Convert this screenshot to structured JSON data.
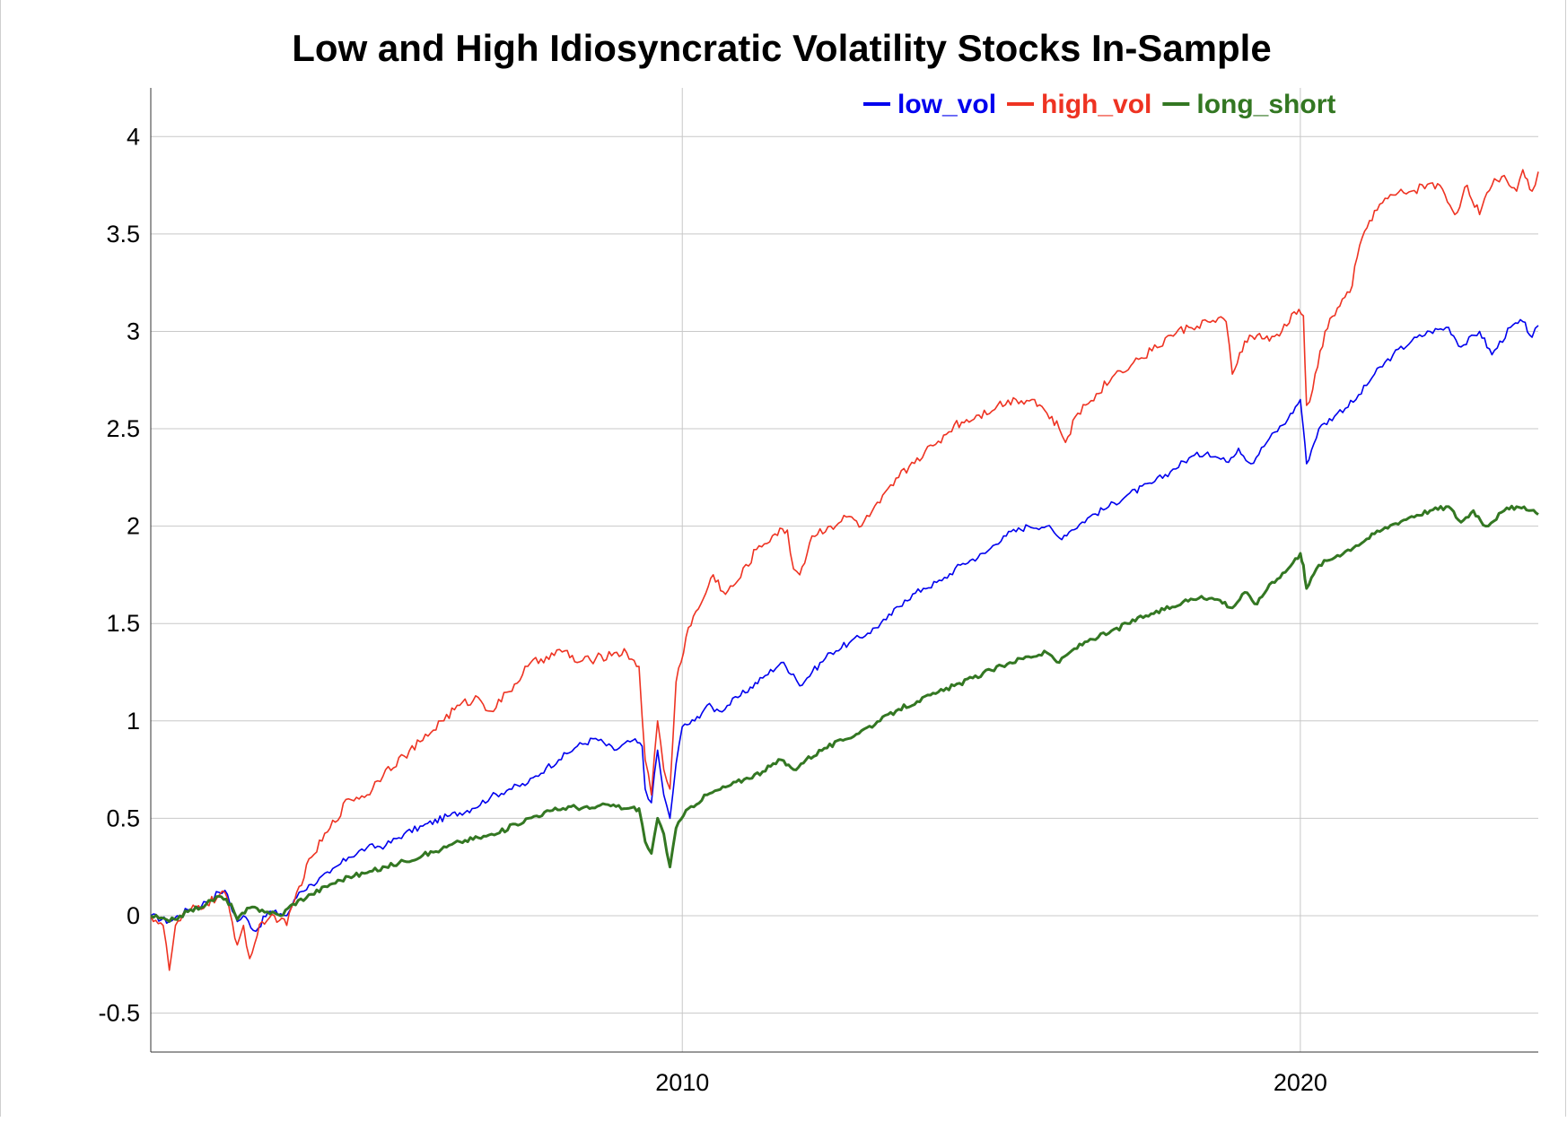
{
  "chart_data": {
    "type": "line",
    "title": "Low and High Idiosyncratic Volatility Stocks In-Sample",
    "xlabel": "",
    "ylabel": "",
    "xlim": [
      2001.4,
      2023.85
    ],
    "ylim": [
      -0.7,
      4.25
    ],
    "yticks": [
      -0.5,
      0,
      0.5,
      1,
      1.5,
      2,
      2.5,
      3,
      3.5,
      4
    ],
    "ytick_labels": [
      "-0.5",
      "0",
      "0.5",
      "1",
      "1.5",
      "2",
      "2.5",
      "3",
      "3.5",
      "4"
    ],
    "xticks": [
      2010,
      2020
    ],
    "xtick_labels": [
      "2010",
      "2020"
    ],
    "grid": true,
    "legend_position": "top-right",
    "series": [
      {
        "name": "low_vol",
        "color": "#0000ee",
        "points": [
          [
            2001.4,
            0.0
          ],
          [
            2001.7,
            -0.03
          ],
          [
            2002.0,
            0.03
          ],
          [
            2002.3,
            0.07
          ],
          [
            2002.5,
            0.12
          ],
          [
            2002.6,
            0.13
          ],
          [
            2002.8,
            -0.03
          ],
          [
            2002.9,
            0.0
          ],
          [
            2003.1,
            -0.08
          ],
          [
            2003.3,
            0.02
          ],
          [
            2003.5,
            0.01
          ],
          [
            2003.6,
            0.0
          ],
          [
            2003.8,
            0.12
          ],
          [
            2004.0,
            0.16
          ],
          [
            2004.3,
            0.22
          ],
          [
            2004.6,
            0.3
          ],
          [
            2004.9,
            0.35
          ],
          [
            2005.2,
            0.36
          ],
          [
            2005.5,
            0.42
          ],
          [
            2005.8,
            0.46
          ],
          [
            2006.2,
            0.51
          ],
          [
            2006.6,
            0.55
          ],
          [
            2006.9,
            0.61
          ],
          [
            2007.2,
            0.65
          ],
          [
            2007.5,
            0.68
          ],
          [
            2007.8,
            0.76
          ],
          [
            2008.0,
            0.8
          ],
          [
            2008.3,
            0.87
          ],
          [
            2008.6,
            0.91
          ],
          [
            2008.9,
            0.85
          ],
          [
            2009.2,
            0.9
          ],
          [
            2009.35,
            0.87
          ],
          [
            2009.4,
            0.65
          ],
          [
            2009.5,
            0.58
          ],
          [
            2009.6,
            0.85
          ],
          [
            2009.7,
            0.62
          ],
          [
            2009.8,
            0.5
          ],
          [
            2009.9,
            0.78
          ],
          [
            2010.0,
            0.97
          ],
          [
            2010.2,
            1.0
          ],
          [
            2010.4,
            1.08
          ],
          [
            2010.6,
            1.05
          ],
          [
            2010.9,
            1.12
          ],
          [
            2011.3,
            1.22
          ],
          [
            2011.6,
            1.3
          ],
          [
            2011.8,
            1.24
          ],
          [
            2011.9,
            1.18
          ],
          [
            2012.1,
            1.25
          ],
          [
            2012.4,
            1.35
          ],
          [
            2012.7,
            1.4
          ],
          [
            2013.0,
            1.45
          ],
          [
            2013.3,
            1.52
          ],
          [
            2013.6,
            1.62
          ],
          [
            2013.9,
            1.68
          ],
          [
            2014.2,
            1.72
          ],
          [
            2014.5,
            1.8
          ],
          [
            2014.9,
            1.86
          ],
          [
            2015.2,
            1.95
          ],
          [
            2015.6,
            2.0
          ],
          [
            2015.9,
            2.0
          ],
          [
            2016.1,
            1.94
          ],
          [
            2016.3,
            1.98
          ],
          [
            2016.6,
            2.05
          ],
          [
            2016.9,
            2.1
          ],
          [
            2017.2,
            2.16
          ],
          [
            2017.6,
            2.22
          ],
          [
            2017.9,
            2.28
          ],
          [
            2018.2,
            2.35
          ],
          [
            2018.5,
            2.38
          ],
          [
            2018.8,
            2.33
          ],
          [
            2019.0,
            2.4
          ],
          [
            2019.2,
            2.32
          ],
          [
            2019.5,
            2.45
          ],
          [
            2019.8,
            2.55
          ],
          [
            2020.0,
            2.65
          ],
          [
            2020.05,
            2.5
          ],
          [
            2020.1,
            2.32
          ],
          [
            2020.3,
            2.5
          ],
          [
            2020.6,
            2.58
          ],
          [
            2020.9,
            2.65
          ],
          [
            2021.2,
            2.78
          ],
          [
            2021.5,
            2.88
          ],
          [
            2021.8,
            2.95
          ],
          [
            2022.1,
            3.0
          ],
          [
            2022.4,
            3.02
          ],
          [
            2022.6,
            2.92
          ],
          [
            2022.9,
            3.0
          ],
          [
            2023.1,
            2.88
          ],
          [
            2023.4,
            3.02
          ],
          [
            2023.6,
            3.05
          ],
          [
            2023.75,
            2.97
          ],
          [
            2023.85,
            3.03
          ]
        ]
      },
      {
        "name": "high_vol",
        "color": "#ee3322",
        "points": [
          [
            2001.4,
            0.0
          ],
          [
            2001.6,
            -0.05
          ],
          [
            2001.7,
            -0.28
          ],
          [
            2001.8,
            -0.05
          ],
          [
            2002.0,
            0.02
          ],
          [
            2002.3,
            0.06
          ],
          [
            2002.6,
            0.12
          ],
          [
            2002.8,
            -0.15
          ],
          [
            2002.9,
            -0.05
          ],
          [
            2003.0,
            -0.22
          ],
          [
            2003.2,
            -0.03
          ],
          [
            2003.4,
            0.0
          ],
          [
            2003.6,
            -0.05
          ],
          [
            2003.8,
            0.15
          ],
          [
            2004.0,
            0.3
          ],
          [
            2004.3,
            0.45
          ],
          [
            2004.6,
            0.6
          ],
          [
            2004.9,
            0.62
          ],
          [
            2005.2,
            0.75
          ],
          [
            2005.5,
            0.82
          ],
          [
            2005.8,
            0.9
          ],
          [
            2006.1,
            1.0
          ],
          [
            2006.4,
            1.08
          ],
          [
            2006.7,
            1.12
          ],
          [
            2006.9,
            1.05
          ],
          [
            2007.2,
            1.15
          ],
          [
            2007.5,
            1.28
          ],
          [
            2007.8,
            1.33
          ],
          [
            2008.1,
            1.36
          ],
          [
            2008.3,
            1.3
          ],
          [
            2008.6,
            1.32
          ],
          [
            2008.9,
            1.35
          ],
          [
            2009.1,
            1.35
          ],
          [
            2009.3,
            1.28
          ],
          [
            2009.4,
            0.8
          ],
          [
            2009.5,
            0.62
          ],
          [
            2009.6,
            1.0
          ],
          [
            2009.7,
            0.75
          ],
          [
            2009.8,
            0.65
          ],
          [
            2009.9,
            1.2
          ],
          [
            2010.1,
            1.48
          ],
          [
            2010.3,
            1.6
          ],
          [
            2010.5,
            1.75
          ],
          [
            2010.7,
            1.65
          ],
          [
            2010.9,
            1.72
          ],
          [
            2011.2,
            1.88
          ],
          [
            2011.5,
            1.96
          ],
          [
            2011.7,
            1.98
          ],
          [
            2011.8,
            1.78
          ],
          [
            2011.9,
            1.75
          ],
          [
            2012.1,
            1.95
          ],
          [
            2012.4,
            2.0
          ],
          [
            2012.7,
            2.05
          ],
          [
            2012.9,
            2.0
          ],
          [
            2013.2,
            2.12
          ],
          [
            2013.5,
            2.25
          ],
          [
            2013.8,
            2.35
          ],
          [
            2014.1,
            2.42
          ],
          [
            2014.4,
            2.52
          ],
          [
            2014.8,
            2.57
          ],
          [
            2015.1,
            2.62
          ],
          [
            2015.4,
            2.65
          ],
          [
            2015.7,
            2.65
          ],
          [
            2015.9,
            2.58
          ],
          [
            2016.1,
            2.5
          ],
          [
            2016.2,
            2.43
          ],
          [
            2016.4,
            2.58
          ],
          [
            2016.7,
            2.68
          ],
          [
            2017.0,
            2.78
          ],
          [
            2017.3,
            2.84
          ],
          [
            2017.6,
            2.9
          ],
          [
            2017.9,
            2.98
          ],
          [
            2018.2,
            3.02
          ],
          [
            2018.5,
            3.05
          ],
          [
            2018.8,
            3.05
          ],
          [
            2018.9,
            2.78
          ],
          [
            2019.1,
            2.95
          ],
          [
            2019.3,
            2.98
          ],
          [
            2019.5,
            2.95
          ],
          [
            2019.7,
            3.0
          ],
          [
            2019.9,
            3.1
          ],
          [
            2020.05,
            3.08
          ],
          [
            2020.1,
            2.62
          ],
          [
            2020.2,
            2.7
          ],
          [
            2020.4,
            3.0
          ],
          [
            2020.6,
            3.12
          ],
          [
            2020.8,
            3.2
          ],
          [
            2021.0,
            3.48
          ],
          [
            2021.2,
            3.62
          ],
          [
            2021.5,
            3.7
          ],
          [
            2021.8,
            3.72
          ],
          [
            2022.1,
            3.76
          ],
          [
            2022.3,
            3.73
          ],
          [
            2022.5,
            3.6
          ],
          [
            2022.7,
            3.75
          ],
          [
            2022.9,
            3.6
          ],
          [
            2023.1,
            3.75
          ],
          [
            2023.3,
            3.8
          ],
          [
            2023.5,
            3.72
          ],
          [
            2023.6,
            3.83
          ],
          [
            2023.75,
            3.72
          ],
          [
            2023.85,
            3.82
          ]
        ]
      },
      {
        "name": "long_short",
        "color": "#337722",
        "points": [
          [
            2001.4,
            0.0
          ],
          [
            2001.7,
            -0.03
          ],
          [
            2002.0,
            0.02
          ],
          [
            2002.3,
            0.06
          ],
          [
            2002.5,
            0.1
          ],
          [
            2002.7,
            0.06
          ],
          [
            2002.8,
            -0.02
          ],
          [
            2003.0,
            0.04
          ],
          [
            2003.2,
            0.03
          ],
          [
            2003.5,
            0.0
          ],
          [
            2003.7,
            0.06
          ],
          [
            2004.0,
            0.11
          ],
          [
            2004.3,
            0.16
          ],
          [
            2004.6,
            0.2
          ],
          [
            2004.9,
            0.22
          ],
          [
            2005.2,
            0.25
          ],
          [
            2005.5,
            0.28
          ],
          [
            2005.8,
            0.31
          ],
          [
            2006.1,
            0.34
          ],
          [
            2006.4,
            0.38
          ],
          [
            2006.7,
            0.4
          ],
          [
            2007.0,
            0.42
          ],
          [
            2007.3,
            0.47
          ],
          [
            2007.6,
            0.51
          ],
          [
            2007.9,
            0.54
          ],
          [
            2008.2,
            0.56
          ],
          [
            2008.5,
            0.55
          ],
          [
            2008.8,
            0.57
          ],
          [
            2009.1,
            0.55
          ],
          [
            2009.3,
            0.55
          ],
          [
            2009.4,
            0.38
          ],
          [
            2009.5,
            0.32
          ],
          [
            2009.6,
            0.5
          ],
          [
            2009.7,
            0.42
          ],
          [
            2009.8,
            0.25
          ],
          [
            2009.9,
            0.45
          ],
          [
            2010.1,
            0.55
          ],
          [
            2010.4,
            0.62
          ],
          [
            2010.7,
            0.66
          ],
          [
            2011.0,
            0.7
          ],
          [
            2011.3,
            0.74
          ],
          [
            2011.6,
            0.8
          ],
          [
            2011.8,
            0.75
          ],
          [
            2012.0,
            0.8
          ],
          [
            2012.3,
            0.86
          ],
          [
            2012.6,
            0.9
          ],
          [
            2012.9,
            0.95
          ],
          [
            2013.2,
            1.0
          ],
          [
            2013.5,
            1.06
          ],
          [
            2013.8,
            1.1
          ],
          [
            2014.1,
            1.14
          ],
          [
            2014.4,
            1.18
          ],
          [
            2014.7,
            1.22
          ],
          [
            2015.0,
            1.26
          ],
          [
            2015.3,
            1.3
          ],
          [
            2015.6,
            1.33
          ],
          [
            2015.9,
            1.35
          ],
          [
            2016.1,
            1.3
          ],
          [
            2016.3,
            1.36
          ],
          [
            2016.6,
            1.42
          ],
          [
            2016.9,
            1.45
          ],
          [
            2017.2,
            1.5
          ],
          [
            2017.5,
            1.54
          ],
          [
            2017.8,
            1.57
          ],
          [
            2018.1,
            1.61
          ],
          [
            2018.4,
            1.64
          ],
          [
            2018.7,
            1.62
          ],
          [
            2018.9,
            1.58
          ],
          [
            2019.1,
            1.66
          ],
          [
            2019.3,
            1.6
          ],
          [
            2019.5,
            1.7
          ],
          [
            2019.8,
            1.78
          ],
          [
            2020.0,
            1.86
          ],
          [
            2020.05,
            1.8
          ],
          [
            2020.1,
            1.68
          ],
          [
            2020.3,
            1.8
          ],
          [
            2020.6,
            1.85
          ],
          [
            2020.9,
            1.9
          ],
          [
            2021.2,
            1.96
          ],
          [
            2021.5,
            2.01
          ],
          [
            2021.8,
            2.05
          ],
          [
            2022.1,
            2.08
          ],
          [
            2022.4,
            2.1
          ],
          [
            2022.6,
            2.02
          ],
          [
            2022.8,
            2.08
          ],
          [
            2023.0,
            2.0
          ],
          [
            2023.3,
            2.08
          ],
          [
            2023.5,
            2.1
          ],
          [
            2023.7,
            2.08
          ],
          [
            2023.85,
            2.06
          ]
        ]
      }
    ]
  }
}
